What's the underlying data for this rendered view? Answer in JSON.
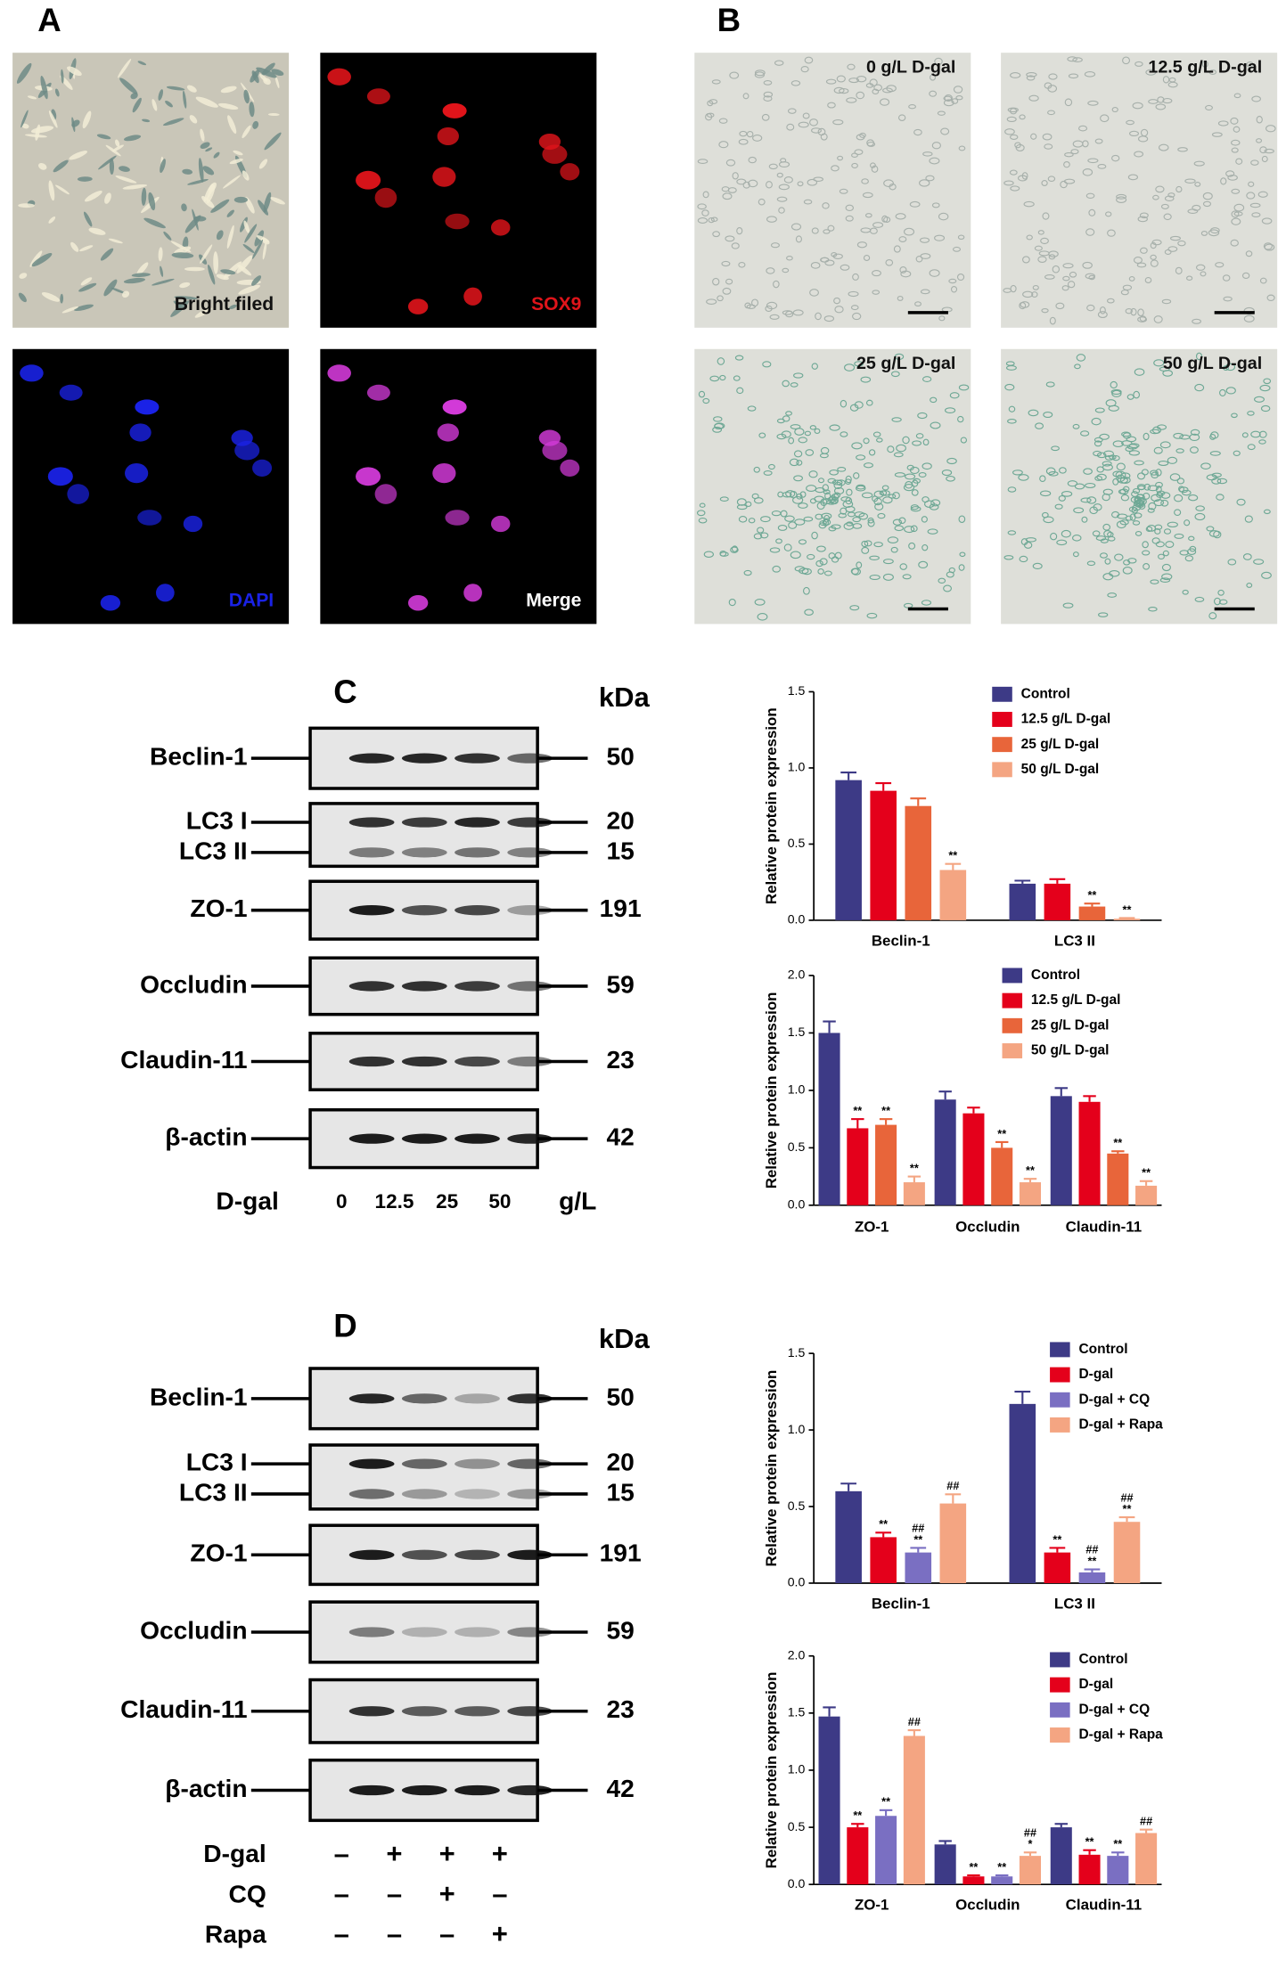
{
  "panels": [
    {
      "label": "A",
      "images": [
        "Bright filed",
        "SOX9",
        "DAPI",
        "Merge"
      ]
    },
    {
      "label": "B",
      "images": [
        "0 g/L D-gal",
        "12.5 g/L D-gal",
        "25 g/L D-gal",
        "50 g/L D-gal"
      ]
    }
  ],
  "blots": [
    {
      "label": "C",
      "size_header": "kDa",
      "rows": [
        {
          "names": [
            "Beclin-1"
          ],
          "sizes": [
            50
          ]
        },
        {
          "names": [
            "LC3 I",
            "LC3 II"
          ],
          "sizes": [
            20,
            15
          ]
        },
        {
          "names": [
            "ZO-1"
          ],
          "sizes": [
            191
          ]
        },
        {
          "names": [
            "Occludin"
          ],
          "sizes": [
            59
          ]
        },
        {
          "names": [
            "Claudin-11"
          ],
          "sizes": [
            23
          ]
        },
        {
          "names": [
            "β-actin"
          ],
          "sizes": [
            42
          ]
        }
      ],
      "treatments": [
        {
          "name": "D-gal",
          "lanes": [
            0,
            12.5,
            25,
            50
          ],
          "unit": "g/L"
        }
      ]
    },
    {
      "label": "D",
      "size_header": "kDa",
      "rows": [
        {
          "names": [
            "Beclin-1"
          ],
          "sizes": [
            50
          ]
        },
        {
          "names": [
            "LC3 I",
            "LC3 II"
          ],
          "sizes": [
            20,
            15
          ]
        },
        {
          "names": [
            "ZO-1"
          ],
          "sizes": [
            191
          ]
        },
        {
          "names": [
            "Occludin"
          ],
          "sizes": [
            59
          ]
        },
        {
          "names": [
            "Claudin-11"
          ],
          "sizes": [
            23
          ]
        },
        {
          "names": [
            "β-actin"
          ],
          "sizes": [
            42
          ]
        }
      ],
      "treatments": [
        {
          "name": "D-gal",
          "lanes": [
            "–",
            "+",
            "+",
            "+"
          ]
        },
        {
          "name": "CQ",
          "lanes": [
            "–",
            "–",
            "+",
            "–"
          ]
        },
        {
          "name": "Rapa",
          "lanes": [
            "–",
            "–",
            "–",
            "+"
          ]
        }
      ]
    }
  ],
  "chart_data": [
    {
      "type": "bar",
      "ylabel": "Relative protein expression",
      "categories": [
        "Beclin-1",
        "LC3 II"
      ],
      "ylim": [
        0,
        1.5
      ],
      "yticks": [
        {
          "value": 0,
          "label": "0.0"
        },
        0.5,
        {
          "value": 1,
          "label": "1.0"
        },
        1.5
      ],
      "series": [
        {
          "name": "Control",
          "color": "#3d3a86",
          "values": [
            0.92,
            0.24
          ],
          "errors": [
            0.05,
            0.02
          ],
          "annotations": [
            null,
            null
          ]
        },
        {
          "name": "12.5 g/L D-gal",
          "color": "#e4001b",
          "values": [
            0.85,
            0.24
          ],
          "errors": [
            0.05,
            0.03
          ],
          "annotations": [
            null,
            null
          ]
        },
        {
          "name": "25 g/L D-gal",
          "color": "#e8653a",
          "values": [
            0.75,
            0.09
          ],
          "errors": [
            0.05,
            0.02
          ],
          "annotations": [
            null,
            [
              "**"
            ]
          ]
        },
        {
          "name": "50 g/L D-gal",
          "color": "#f4a582",
          "values": [
            0.33,
            0.01
          ],
          "errors": [
            0.04,
            0.005
          ],
          "annotations": [
            [
              "**"
            ],
            [
              "**"
            ]
          ]
        }
      ]
    },
    {
      "type": "bar",
      "ylabel": "Relative protein expression",
      "categories": [
        "ZO-1",
        "Occludin",
        "Claudin-11"
      ],
      "ylim": [
        0,
        2
      ],
      "yticks": [
        {
          "value": 0,
          "label": "0.0"
        },
        0.5,
        {
          "value": 1,
          "label": "1.0"
        },
        1.5,
        {
          "value": 2,
          "label": "2.0"
        }
      ],
      "series": [
        {
          "name": "Control",
          "color": "#3d3a86",
          "values": [
            1.5,
            0.92,
            0.95
          ],
          "errors": [
            0.1,
            0.07,
            0.07
          ],
          "annotations": [
            null,
            null,
            null
          ]
        },
        {
          "name": "12.5 g/L D-gal",
          "color": "#e4001b",
          "values": [
            0.67,
            0.8,
            0.9
          ],
          "errors": [
            0.08,
            0.05,
            0.05
          ],
          "annotations": [
            [
              "**"
            ],
            null,
            null
          ]
        },
        {
          "name": "25 g/L D-gal",
          "color": "#e8653a",
          "values": [
            0.7,
            0.5,
            0.45
          ],
          "errors": [
            0.05,
            0.05,
            0.02
          ],
          "annotations": [
            [
              "**"
            ],
            [
              "**"
            ],
            [
              "**"
            ]
          ]
        },
        {
          "name": "50 g/L D-gal",
          "color": "#f4a582",
          "values": [
            0.2,
            0.2,
            0.17
          ],
          "errors": [
            0.05,
            0.03,
            0.04
          ],
          "annotations": [
            [
              "**"
            ],
            [
              "**"
            ],
            [
              "**"
            ]
          ]
        }
      ]
    },
    {
      "type": "bar",
      "ylabel": "Relative protein expression",
      "categories": [
        "Beclin-1",
        "LC3 II"
      ],
      "ylim": [
        0,
        1.5
      ],
      "yticks": [
        {
          "value": 0,
          "label": "0.0"
        },
        0.5,
        {
          "value": 1,
          "label": "1.0"
        },
        1.5
      ],
      "series": [
        {
          "name": "Control",
          "color": "#3d3a86",
          "values": [
            0.6,
            1.17
          ],
          "errors": [
            0.05,
            0.08
          ],
          "annotations": [
            null,
            null
          ]
        },
        {
          "name": "D-gal",
          "color": "#e4001b",
          "values": [
            0.3,
            0.2
          ],
          "errors": [
            0.03,
            0.03
          ],
          "annotations": [
            [
              "**"
            ],
            [
              "**"
            ]
          ]
        },
        {
          "name": "D-gal + CQ",
          "color": "#7a6fc2",
          "values": [
            0.2,
            0.07
          ],
          "errors": [
            0.03,
            0.02
          ],
          "annotations": [
            [
              "##",
              "**"
            ],
            [
              "##",
              "**"
            ]
          ]
        },
        {
          "name": "D-gal + Rapa",
          "color": "#f4a582",
          "values": [
            0.52,
            0.4
          ],
          "errors": [
            0.06,
            0.03
          ],
          "annotations": [
            [
              "##"
            ],
            [
              "##",
              "**"
            ]
          ]
        }
      ]
    },
    {
      "type": "bar",
      "ylabel": "Relative protein expression",
      "categories": [
        "ZO-1",
        "Occludin",
        "Claudin-11"
      ],
      "ylim": [
        0,
        2
      ],
      "yticks": [
        {
          "value": 0,
          "label": "0.0"
        },
        0.5,
        {
          "value": 1,
          "label": "1.0"
        },
        1.5,
        {
          "value": 2,
          "label": "2.0"
        }
      ],
      "series": [
        {
          "name": "Control",
          "color": "#3d3a86",
          "values": [
            1.47,
            0.35,
            0.5
          ],
          "errors": [
            0.08,
            0.03,
            0.03
          ],
          "annotations": [
            null,
            null,
            null
          ]
        },
        {
          "name": "D-gal",
          "color": "#e4001b",
          "values": [
            0.5,
            0.07,
            0.26
          ],
          "errors": [
            0.03,
            0.01,
            0.04
          ],
          "annotations": [
            [
              "**"
            ],
            [
              "**"
            ],
            [
              "**"
            ]
          ]
        },
        {
          "name": "D-gal + CQ",
          "color": "#7a6fc2",
          "values": [
            0.6,
            0.07,
            0.25
          ],
          "errors": [
            0.05,
            0.01,
            0.03
          ],
          "annotations": [
            [
              "**"
            ],
            [
              "**"
            ],
            [
              "**"
            ]
          ]
        },
        {
          "name": "D-gal + Rapa",
          "color": "#f4a582",
          "values": [
            1.3,
            0.25,
            0.45
          ],
          "errors": [
            0.05,
            0.03,
            0.03
          ],
          "annotations": [
            [
              "##"
            ],
            [
              "##",
              "*"
            ],
            [
              "##"
            ]
          ]
        }
      ]
    }
  ]
}
